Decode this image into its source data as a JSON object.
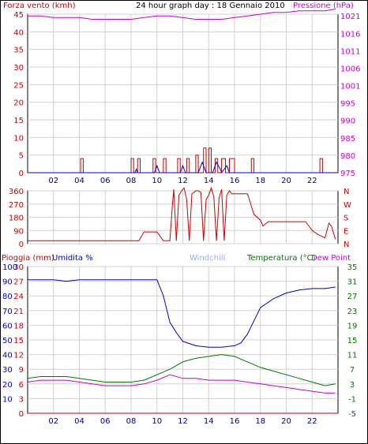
{
  "chart_data": [
    {
      "type": "line",
      "title": "24 hour graph day : 18 Gennaio 2010",
      "left_axis_label": "Forza vento (kmh)",
      "right_axis_label": "Pressione (hPa)",
      "left_ticks": [
        0,
        5,
        10,
        15,
        20,
        25,
        30,
        35,
        40,
        45
      ],
      "right_ticks": [
        975,
        980,
        985,
        990,
        995,
        1001,
        1006,
        1011,
        1016,
        1021
      ],
      "x_ticks": [
        "02",
        "04",
        "06",
        "08",
        "10",
        "12",
        "14",
        "16",
        "18",
        "20",
        "22"
      ],
      "xlim": [
        0,
        24
      ],
      "series": [
        {
          "color": "#cc00cc",
          "x": [
            0,
            1,
            2,
            3,
            4,
            5,
            6,
            7,
            8,
            9,
            10,
            11,
            12,
            13,
            14,
            15,
            16,
            17,
            18,
            19,
            20,
            21,
            22,
            23,
            23.8
          ],
          "y": [
            1021,
            1021,
            1020.5,
            1020.5,
            1020.5,
            1020,
            1020,
            1020,
            1020,
            1020.5,
            1021,
            1021,
            1020.5,
            1020,
            1020,
            1020,
            1020.5,
            1021,
            1021.5,
            1022,
            1022,
            1022.5,
            1022.5,
            1022.5,
            1023
          ]
        },
        {
          "color": "#cc0000",
          "x": [
            0,
            4.1,
            4.1,
            4.3,
            4.3,
            8.0,
            8.0,
            8.2,
            8.2,
            8.5,
            8.5,
            8.7,
            8.7,
            9.7,
            9.7,
            9.9,
            9.9,
            10.5,
            10.5,
            10.7,
            10.7,
            11.6,
            11.6,
            11.8,
            11.8,
            12.3,
            12.3,
            12.5,
            12.5,
            13.0,
            13.0,
            13.2,
            13.2,
            13.6,
            13.6,
            13.8,
            13.8,
            14.0,
            14.0,
            14.2,
            14.2,
            14.5,
            14.5,
            14.7,
            14.7,
            15.0,
            15.0,
            15.3,
            15.3,
            15.6,
            15.6,
            16.0,
            16.0,
            17.3,
            17.3,
            17.5,
            17.5,
            22.6,
            22.6,
            22.8,
            22.8,
            24
          ],
          "y": [
            0,
            0,
            4,
            4,
            0,
            0,
            4,
            4,
            0,
            0,
            4,
            4,
            0,
            0,
            4,
            4,
            0,
            0,
            4,
            4,
            0,
            0,
            4,
            4,
            0,
            0,
            4,
            4,
            0,
            0,
            5,
            5,
            0,
            0,
            7,
            7,
            0,
            0,
            7,
            7,
            0,
            0,
            4,
            4,
            0,
            0,
            4,
            4,
            0,
            0,
            4,
            4,
            0,
            0,
            4,
            4,
            0,
            0,
            4,
            4,
            0,
            0
          ]
        },
        {
          "color": "#0000cc",
          "x": [
            0,
            8.3,
            8.4,
            8.5,
            9.8,
            10.0,
            10.2,
            11.8,
            12.0,
            12.2,
            13.2,
            13.5,
            13.8,
            14.3,
            14.6,
            14.9,
            15.0,
            15.4,
            15.6,
            16.0,
            24
          ],
          "y": [
            0,
            0,
            1,
            0,
            0,
            2,
            0,
            0,
            2,
            0,
            0,
            3,
            0,
            0,
            3,
            1,
            0,
            2,
            0,
            0,
            0
          ]
        }
      ]
    },
    {
      "type": "line",
      "left_ticks": [
        0,
        90,
        180,
        270,
        360
      ],
      "right_ticks": [
        "N",
        "E",
        "S",
        "W",
        "N"
      ],
      "xlim": [
        0,
        24
      ],
      "series": [
        {
          "color": "#cc0000",
          "x": [
            0,
            6.5,
            7.0,
            8.6,
            9.0,
            10.0,
            10.5,
            10.8,
            11.0,
            11.2,
            11.3,
            11.5,
            11.7,
            11.9,
            12.1,
            12.3,
            12.5,
            12.7,
            13.0,
            13.2,
            13.4,
            13.6,
            13.8,
            14.0,
            14.2,
            14.4,
            14.6,
            14.8,
            15.0,
            15.2,
            15.4,
            15.6,
            15.8,
            16.5,
            17.0,
            17.5,
            18.0,
            18.2,
            18.6,
            19.0,
            20.0,
            21.0,
            21.5,
            22.0,
            22.5,
            23.0,
            23.3,
            23.5,
            23.8
          ],
          "y": [
            20,
            20,
            20,
            20,
            80,
            80,
            20,
            20,
            20,
            270,
            370,
            20,
            330,
            360,
            380,
            300,
            20,
            340,
            360,
            360,
            350,
            20,
            300,
            330,
            380,
            320,
            20,
            310,
            370,
            20,
            330,
            360,
            340,
            340,
            340,
            200,
            160,
            120,
            150,
            150,
            150,
            150,
            150,
            90,
            60,
            40,
            140,
            120,
            30
          ]
        }
      ]
    },
    {
      "type": "line",
      "left_axis_label": "Pioggia (mm)",
      "left_axis_label2": "Umidita %",
      "mid_label": "Windchill",
      "right_axis_label": "Temperatura (°C)",
      "right_axis_label2": "Dew Point",
      "left_ticks": [
        0,
        3,
        6,
        9,
        12,
        15,
        18,
        21,
        24,
        27,
        30
      ],
      "left_ticks2": [
        10,
        20,
        30,
        40,
        50,
        60,
        70,
        80,
        90,
        100
      ],
      "right_ticks": [
        -5,
        -1,
        3,
        7,
        11,
        15,
        19,
        23,
        27,
        31,
        35
      ],
      "x_ticks": [
        "02",
        "04",
        "06",
        "08",
        "10",
        "12",
        "14",
        "16",
        "18",
        "20",
        "22"
      ],
      "xlim": [
        0,
        24
      ],
      "series": [
        {
          "color": "#0000cc",
          "x": [
            0,
            1,
            2,
            3,
            4,
            5,
            6,
            7,
            8,
            9,
            10,
            10.5,
            11,
            11.5,
            12,
            13,
            14,
            15,
            16,
            16.5,
            17,
            17.5,
            18,
            19,
            20,
            21,
            22,
            23,
            23.8
          ],
          "y": [
            91,
            91,
            91,
            90,
            91,
            91,
            91,
            91,
            91,
            91,
            91,
            80,
            62,
            55,
            49,
            46,
            45,
            45,
            46,
            48,
            54,
            63,
            72,
            78,
            82,
            84,
            85,
            85,
            86
          ]
        },
        {
          "color": "#007700",
          "x": [
            0,
            1,
            2,
            3,
            4,
            5,
            6,
            7,
            8,
            9,
            10,
            11,
            12,
            13,
            14,
            15,
            16,
            17,
            18,
            19,
            20,
            21,
            22,
            23,
            23.8
          ],
          "y": [
            4.5,
            5,
            5,
            5,
            4.5,
            4,
            3.5,
            3.5,
            3.5,
            4,
            5.5,
            7,
            9,
            10,
            10.5,
            11,
            10.5,
            9,
            7.5,
            6.5,
            5.5,
            4.5,
            3.5,
            2.5,
            3
          ]
        },
        {
          "color": "#cc00cc",
          "x": [
            0,
            1,
            2,
            3,
            4,
            5,
            6,
            7,
            8,
            9,
            10,
            11,
            12,
            13,
            14,
            15,
            16,
            17,
            18,
            19,
            20,
            21,
            22,
            23,
            23.8
          ],
          "y": [
            3.5,
            4,
            4,
            4,
            3.5,
            3,
            2.5,
            2.5,
            2.5,
            3,
            4,
            5.5,
            4.5,
            4.5,
            4,
            4,
            4,
            3.5,
            3,
            2.5,
            2,
            1.5,
            1,
            0.5,
            0.5
          ]
        },
        {
          "color": "#cc0000",
          "x": [
            0,
            24
          ],
          "y": [
            -5,
            -5
          ]
        }
      ]
    }
  ]
}
